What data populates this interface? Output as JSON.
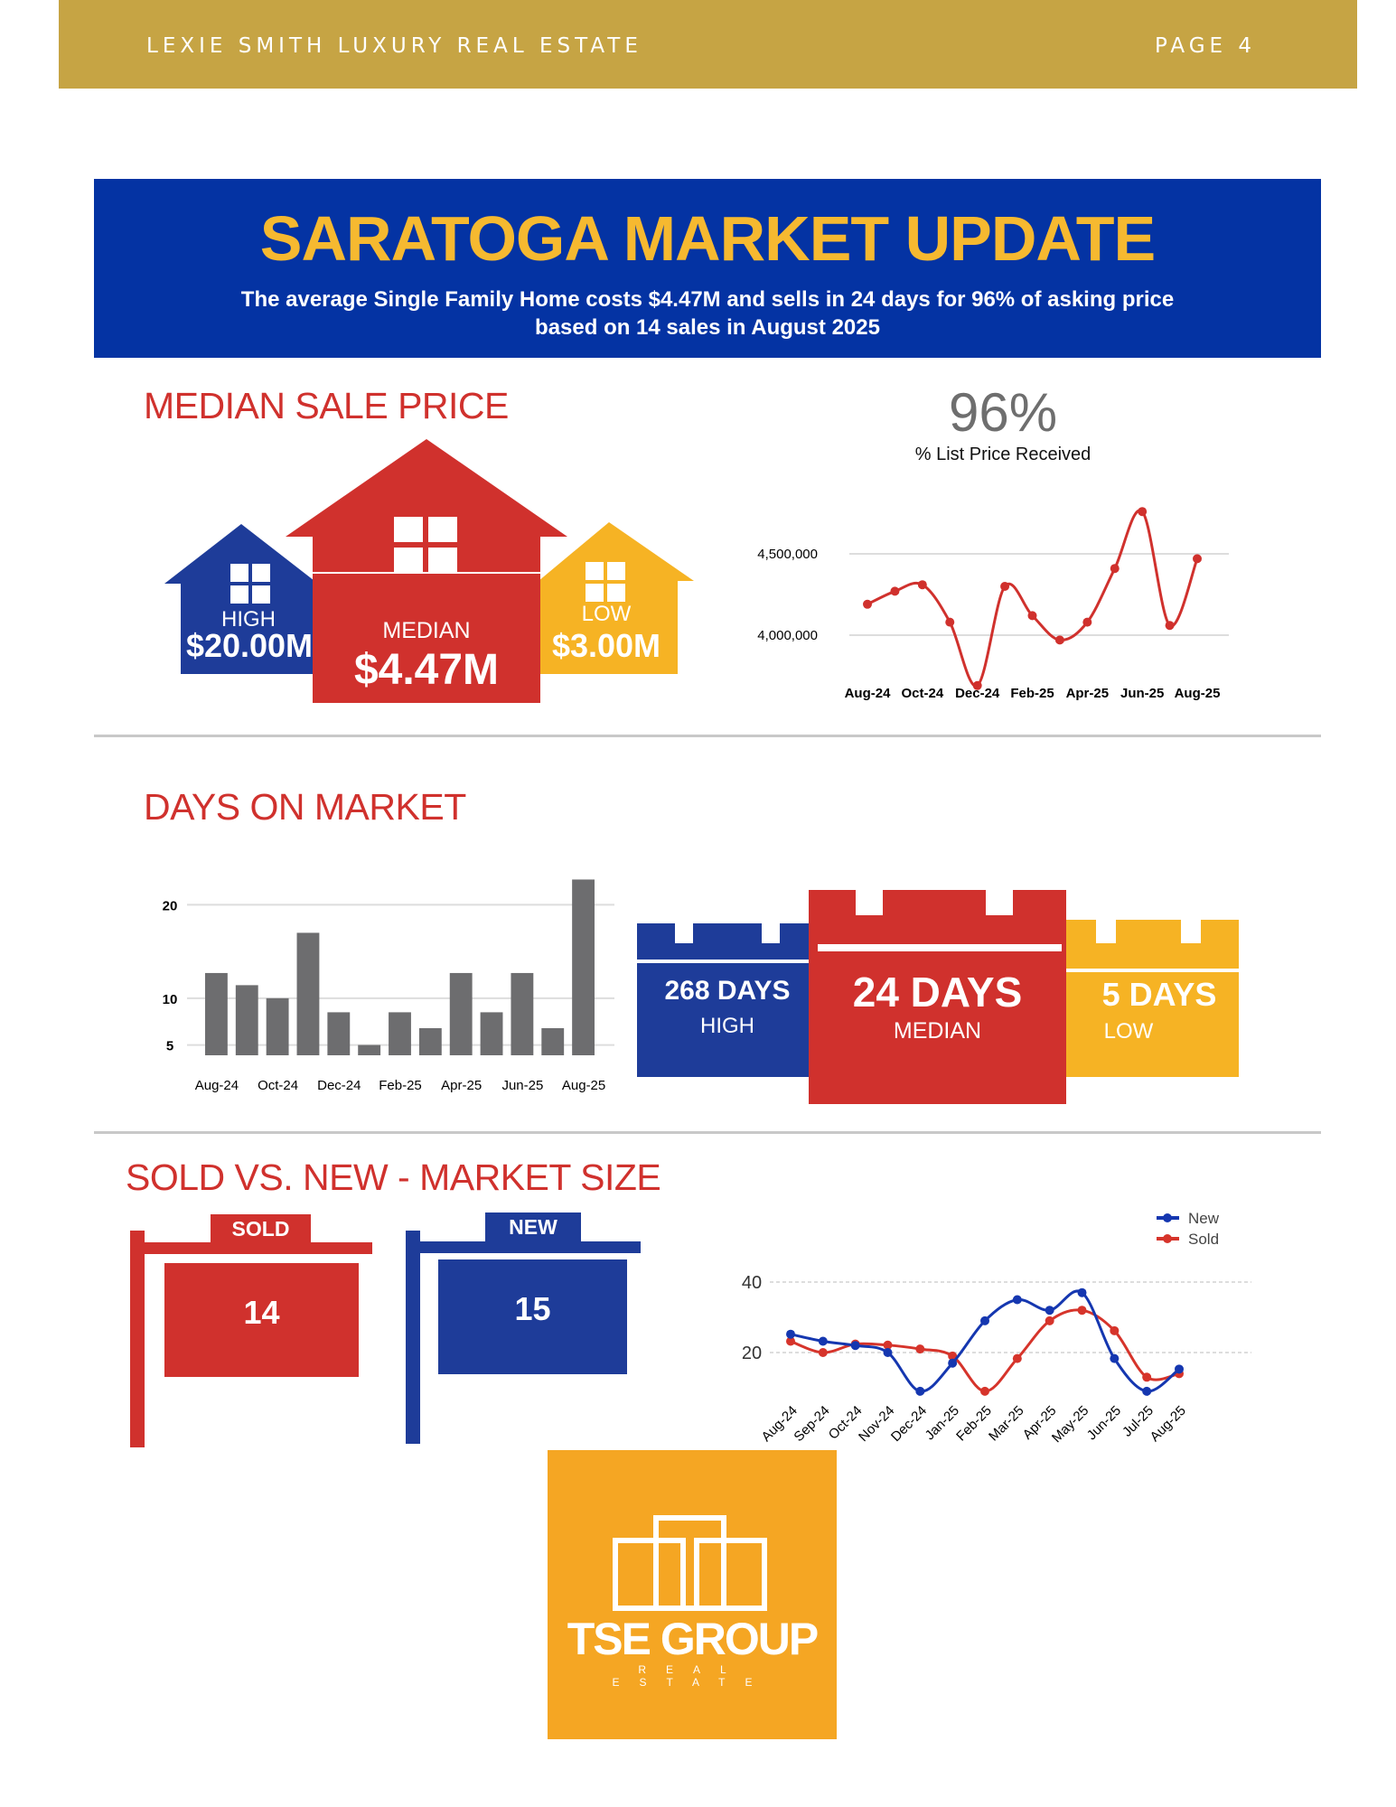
{
  "header": {
    "company": "LEXIE SMITH LUXURY REAL ESTATE",
    "page": "PAGE 4"
  },
  "banner": {
    "title": "SARATOGA MARKET UPDATE",
    "line1": "The average Single Family Home costs $4.47M and sells in 24 days for 96% of asking price",
    "line2": "based on 14 sales in August 2025"
  },
  "median_price": {
    "title": "MEDIAN SALE PRICE",
    "high_label": "HIGH",
    "high_value": "$20.00M",
    "median_label": "MEDIAN",
    "median_value": "$4.47M",
    "low_label": "LOW",
    "low_value": "$3.00M"
  },
  "list_price": {
    "percent": "96%",
    "label": "% List Price Received"
  },
  "days": {
    "title": "DAYS ON MARKET",
    "high": "268 DAYS",
    "high_label": "HIGH",
    "median": "24 DAYS",
    "median_label": "MEDIAN",
    "low": "5 DAYS",
    "low_label": "LOW"
  },
  "sold_new": {
    "title": "SOLD VS. NEW - MARKET SIZE",
    "sold_label": "SOLD",
    "sold_value": "14",
    "new_label": "NEW",
    "new_value": "15"
  },
  "logo": {
    "name": "TSE GROUP",
    "sub": "REAL ESTATE"
  },
  "colors": {
    "gold": "#c6a444",
    "blue": "#0433a3",
    "red": "#d0312d",
    "yellow": "#f6b324",
    "orange": "#f5a623"
  },
  "chart_data": [
    {
      "type": "line",
      "title": "",
      "ylabel": "Median Sale Price",
      "x": [
        "Aug-24",
        "Sep-24",
        "Oct-24",
        "Nov-24",
        "Dec-24",
        "Jan-25",
        "Feb-25",
        "Mar-25",
        "Apr-25",
        "May-25",
        "Jun-25",
        "Jul-25",
        "Aug-25"
      ],
      "xticks": [
        "Aug-24",
        "Oct-24",
        "Dec-24",
        "Feb-25",
        "Apr-25",
        "Jun-25",
        "Aug-25"
      ],
      "yticks": [
        "4,000,000",
        "4,500,000"
      ],
      "ytick_values": [
        4000000,
        4500000
      ],
      "ylim": [
        3600000,
        4850000
      ],
      "values": [
        4190000,
        4270000,
        4310000,
        4080000,
        3690000,
        4300000,
        4120000,
        3970000,
        4080000,
        4410000,
        4760000,
        4060000,
        4470000
      ],
      "color": "#d0312d"
    },
    {
      "type": "bar",
      "x": [
        "Aug-24",
        "Sep-24",
        "Oct-24",
        "Nov-24",
        "Dec-24",
        "Jan-25",
        "Feb-25",
        "Mar-25",
        "Apr-25",
        "May-25",
        "Jun-25",
        "Jul-25",
        "Aug-25"
      ],
      "xticks": [
        "Aug-24",
        "Oct-24",
        "Dec-24",
        "Feb-25",
        "Apr-25",
        "Jun-25",
        "Aug-25"
      ],
      "yticks": [
        "5",
        "10",
        "20"
      ],
      "ytick_values": [
        5,
        10,
        20
      ],
      "ylim": [
        3.9,
        24
      ],
      "values": [
        12.7,
        11.4,
        10,
        17,
        8.5,
        5,
        8.5,
        6.8,
        12.7,
        8.5,
        12.7,
        6.8,
        22.7
      ],
      "color": "#6d6d6f"
    },
    {
      "type": "line",
      "legend": "top-right",
      "x": [
        "Aug-24",
        "Sep-24",
        "Oct-24",
        "Nov-24",
        "Dec-24",
        "Jan-25",
        "Feb-25",
        "Mar-25",
        "Apr-25",
        "May-25",
        "Jun-25",
        "Jul-25",
        "Aug-25"
      ],
      "yticks": [
        "20",
        "40"
      ],
      "ytick_values": [
        20,
        40
      ],
      "ylim": [
        0,
        45
      ],
      "series": [
        {
          "name": "New",
          "color": "#1537b0",
          "values": [
            25.2,
            23.2,
            22,
            20,
            9,
            17,
            29,
            35,
            32,
            37,
            18.3,
            9,
            15.3
          ]
        },
        {
          "name": "Sold",
          "color": "#d6342b",
          "values": [
            23.2,
            20,
            22.4,
            22.1,
            21,
            19,
            9,
            18.3,
            29,
            32,
            26.2,
            13,
            14
          ]
        }
      ]
    }
  ]
}
